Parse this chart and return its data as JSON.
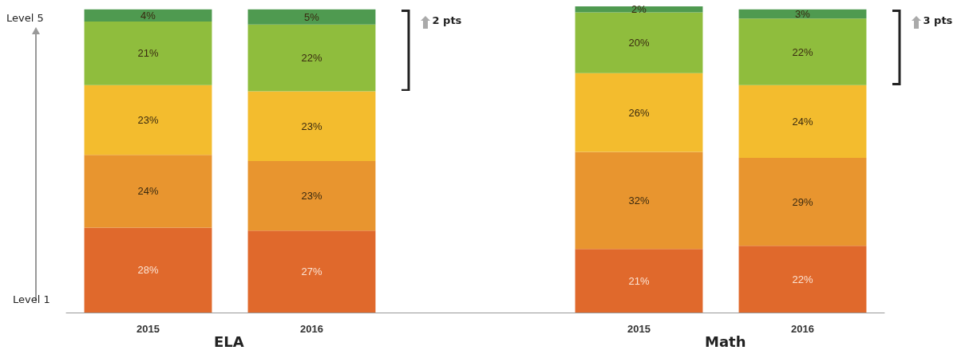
{
  "chart_data": {
    "type": "bar",
    "stacked": true,
    "categories": [
      "2015",
      "2016",
      null,
      "2015",
      "2016"
    ],
    "series": [
      {
        "color": "#e0692c",
        "values": [
          28,
          27,
          null,
          21,
          22
        ],
        "value_labels": [
          "28%",
          "27%",
          null,
          "21%",
          "22%"
        ]
      },
      {
        "color": "#e8952f",
        "values": [
          24,
          23,
          null,
          32,
          29
        ],
        "value_labels": [
          "24%",
          "23%",
          null,
          "32%",
          "29%"
        ]
      },
      {
        "color": "#f3bc2e",
        "values": [
          23,
          23,
          null,
          26,
          24
        ],
        "value_labels": [
          "23%",
          "23%",
          null,
          "26%",
          "24%"
        ]
      },
      {
        "color": "#8fbd3d",
        "values": [
          21,
          22,
          null,
          20,
          22
        ],
        "value_labels": [
          "21%",
          "22%",
          null,
          "20%",
          "22%"
        ]
      },
      {
        "color": "#4f9a50",
        "values": [
          4,
          5,
          null,
          2,
          3
        ],
        "value_labels": [
          "4%",
          "5%",
          null,
          "2%",
          "3%"
        ]
      }
    ],
    "annotations": [
      "Level 5",
      "Level 1",
      "ELA",
      "Math",
      "2 pts",
      "3 pts"
    ]
  }
}
